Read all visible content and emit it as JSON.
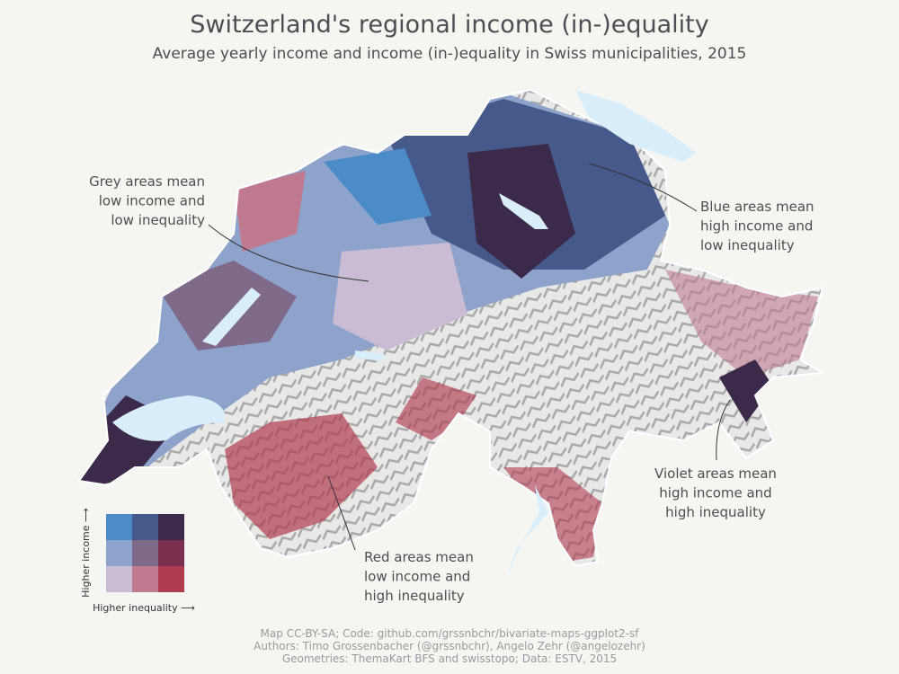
{
  "title": "Switzerland's regional income (in-)equality",
  "subtitle": "Average yearly income and income (in-)equality in Swiss municipalities, 2015",
  "annotations": [
    {
      "lines": [
        "Grey areas mean",
        "low income and",
        "low inequality"
      ]
    },
    {
      "lines": [
        "Blue areas mean",
        "high income and",
        "low inequality"
      ]
    },
    {
      "lines": [
        "Red areas mean",
        "low income and",
        "high inequality"
      ]
    },
    {
      "lines": [
        "Violet areas mean",
        "high income and",
        "high inequality"
      ]
    }
  ],
  "legend": {
    "y_label": "Higher income ⟶",
    "x_label": "Higher inequality ⟶",
    "colors": [
      [
        "#4a8bc8",
        "#45598a",
        "#3c2a4a"
      ],
      [
        "#8ea3cc",
        "#7f6a8a",
        "#7a2f4f"
      ],
      [
        "#cbbcd6",
        "#c07a90",
        "#b03a50"
      ]
    ]
  },
  "caption": [
    "Map CC-BY-SA; Code: github.com/grssnbchr/bivariate-maps-ggplot2-sf",
    "Authors: Timo Grossenbacher (@grssnbchr), Angelo Zehr (@angelozehr)",
    "Geometries: ThemaKart BFS and swisstopo; Data: ESTV, 2015"
  ]
}
